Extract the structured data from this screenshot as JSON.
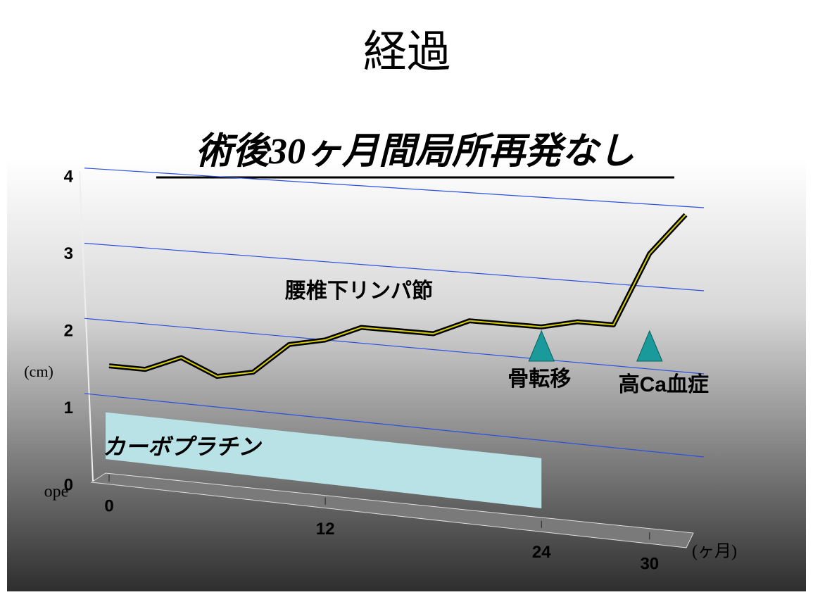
{
  "chart_data": {
    "type": "line",
    "title": "経過",
    "subtitle": "術後30ヶ月間局所再発なし",
    "x": [
      0,
      2,
      4,
      6,
      8,
      10,
      12,
      14,
      16,
      18,
      20,
      22,
      24,
      26,
      28,
      30,
      32
    ],
    "series": [
      {
        "name": "腰椎下リンパ節",
        "color": "#000000",
        "values": [
          1.4,
          1.4,
          1.6,
          1.4,
          1.5,
          1.9,
          2.0,
          2.2,
          2.2,
          2.2,
          2.4,
          2.4,
          2.4,
          2.5,
          2.5,
          3.4,
          3.9
        ]
      }
    ],
    "xlim": [
      0,
      32
    ],
    "ylim": [
      0,
      4
    ],
    "xticks": [
      0,
      12,
      24,
      30
    ],
    "yticks": [
      0,
      1,
      2,
      3,
      4
    ],
    "xlabel": "(ヶ月)",
    "ylabel": "(cm)",
    "baseline_label": "ope",
    "grid": true,
    "grid_color": "#2a50e0",
    "period": {
      "label": "カーボプラチン",
      "start": 0,
      "end": 24,
      "color": "#b8e2e6"
    },
    "events": [
      {
        "label": "骨転移",
        "x": 24
      },
      {
        "label": "高Ca血症",
        "x": 30
      }
    ],
    "event_color": "#1a9a9a"
  }
}
